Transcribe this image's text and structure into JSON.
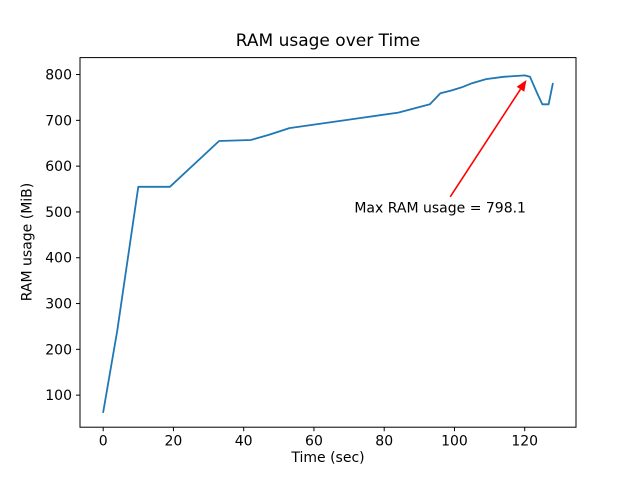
{
  "chart_data": {
    "type": "line",
    "title": "RAM usage over Time",
    "xlabel": "Time (sec)",
    "ylabel": "RAM usage (MiB)",
    "xlim": [
      -6.6,
      134.6
    ],
    "ylim": [
      30,
      837
    ],
    "xticks": [
      0,
      20,
      40,
      60,
      80,
      100,
      120
    ],
    "yticks": [
      100,
      200,
      300,
      400,
      500,
      600,
      700,
      800
    ],
    "grid": false,
    "legend": "none",
    "background": "#ffffff",
    "axis_color": "#000000",
    "series": [
      {
        "name": "RAM usage",
        "color": "#1f77b4",
        "points": [
          [
            0,
            63
          ],
          [
            4,
            240
          ],
          [
            10,
            555
          ],
          [
            19,
            555
          ],
          [
            33,
            655
          ],
          [
            42,
            657
          ],
          [
            47,
            668
          ],
          [
            53,
            683
          ],
          [
            63,
            694
          ],
          [
            73,
            705
          ],
          [
            84,
            717
          ],
          [
            93,
            735
          ],
          [
            96,
            759
          ],
          [
            99,
            765
          ],
          [
            102,
            772
          ],
          [
            105,
            781
          ],
          [
            109,
            790
          ],
          [
            114,
            795
          ],
          [
            118,
            797
          ],
          [
            120,
            798.1
          ],
          [
            121.5,
            795
          ],
          [
            123.5,
            760
          ],
          [
            125,
            735
          ],
          [
            126.8,
            735
          ],
          [
            128,
            780
          ]
        ]
      }
    ],
    "max_value": 798.1,
    "annotation": {
      "text": "Max RAM usage = 798.1",
      "color": "#ff0000",
      "arrow_tip": [
        120.5,
        788
      ],
      "arrow_tail": [
        98.8,
        533
      ],
      "text_pos": [
        71.5,
        499
      ]
    }
  }
}
